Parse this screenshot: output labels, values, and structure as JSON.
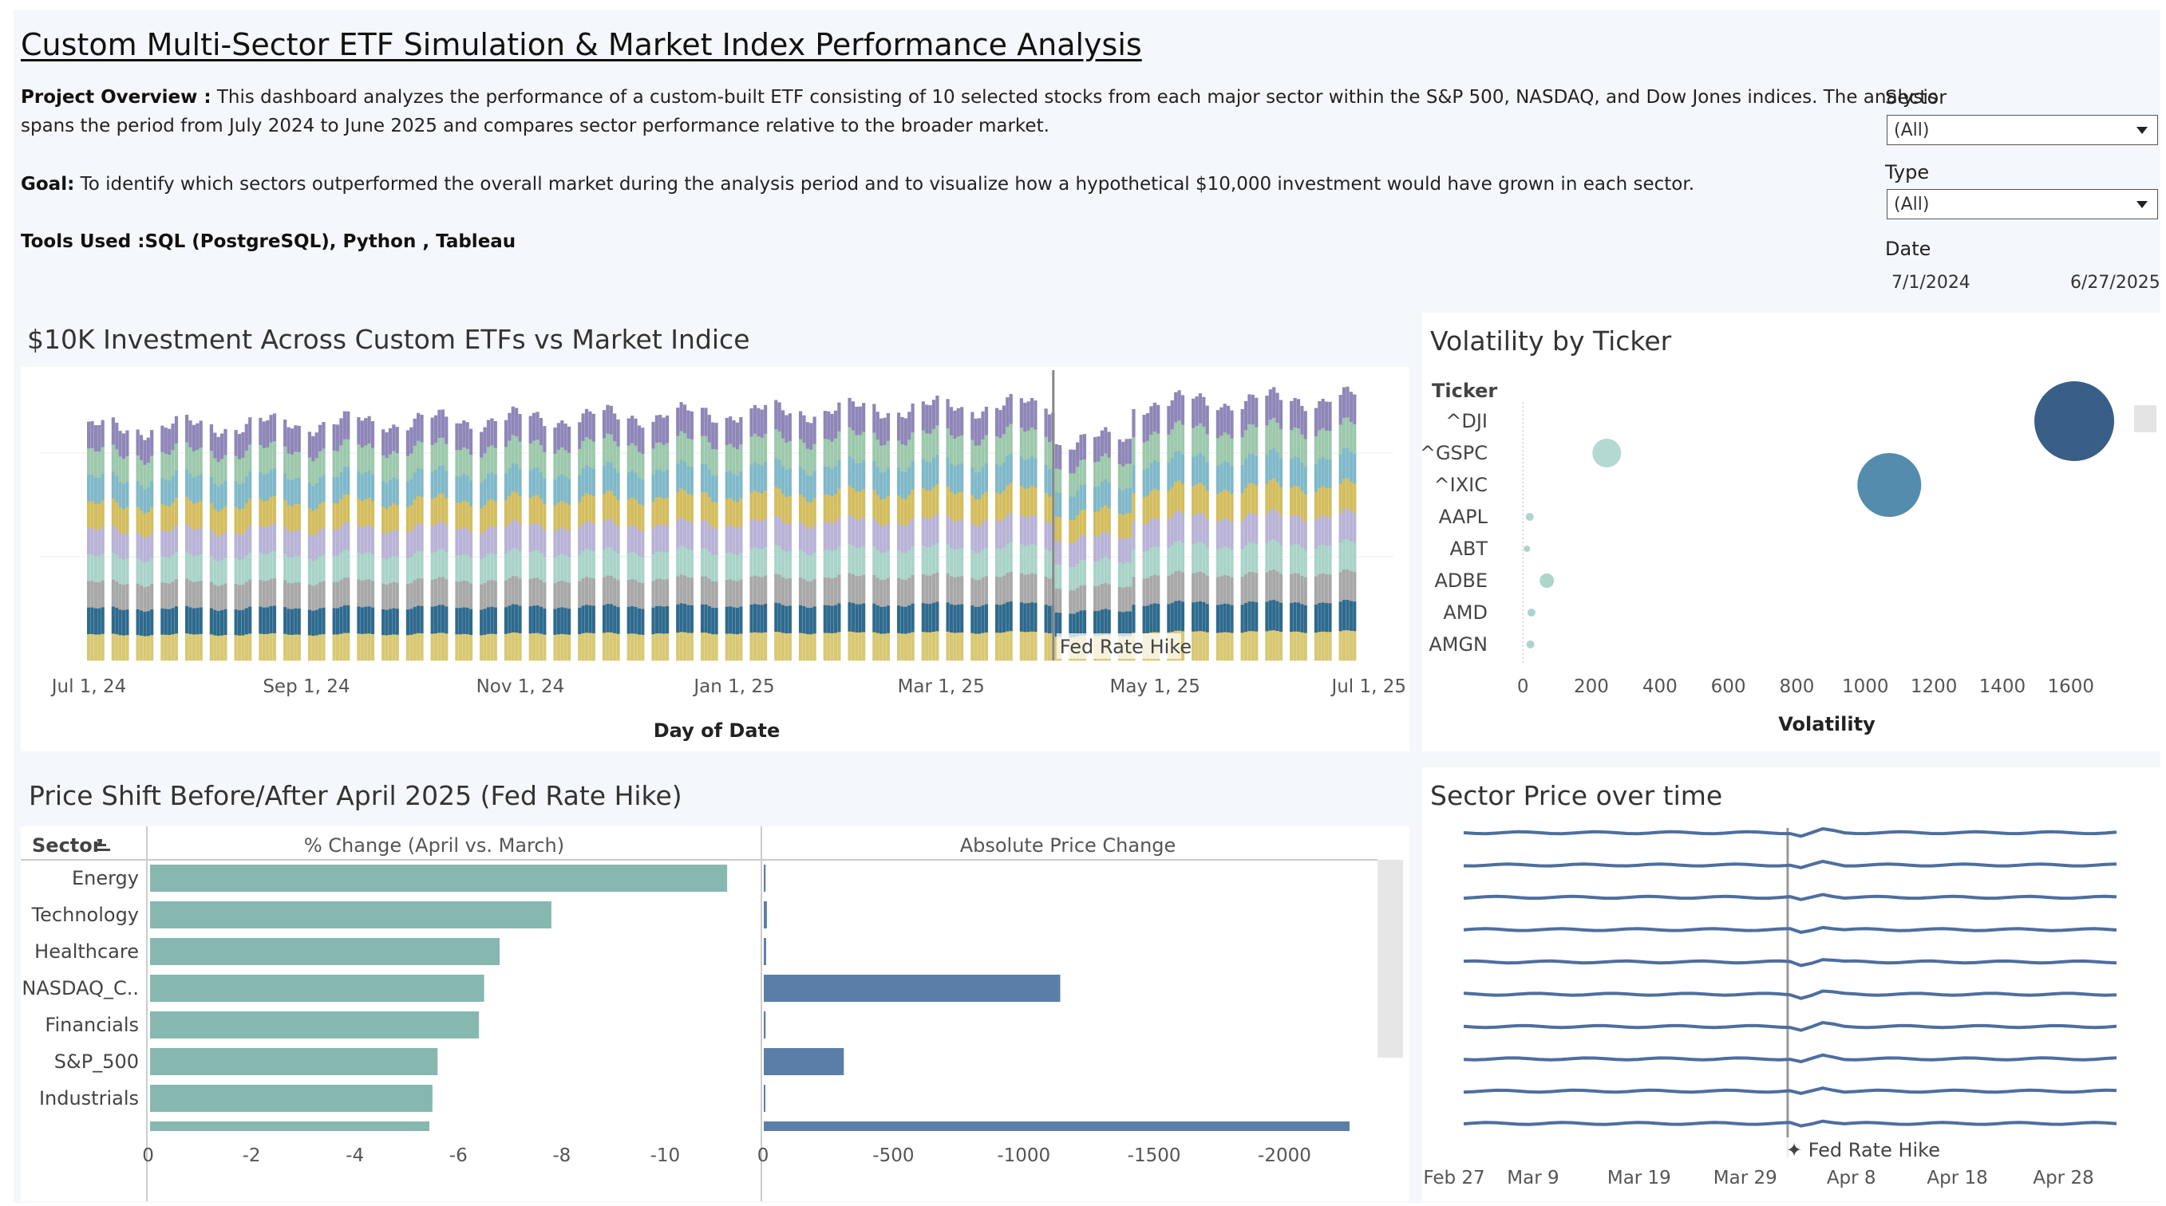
{
  "header": {
    "title": "Custom Multi-Sector ETF Simulation & Market Index Performance Analysis",
    "overview_label": "Project Overview :",
    "overview_line1": "This dashboard analyzes the performance of a custom-built ETF consisting of 10 selected stocks from each major sector within the S&P 500, NASDAQ, and Dow Jones indices. The analysis",
    "overview_line2": "spans the period from July 2024 to June 2025 and compares sector performance relative to the broader market.",
    "goal_label": "Goal:",
    "goal_text": "To identify which sectors outperformed the overall market during the analysis period and to visualize how a hypothetical $10,000 investment would have grown in each sector.",
    "tools_label": "Tools Used :",
    "tools_text": "SQL (PostgreSQL), Python , Tableau"
  },
  "filters": {
    "sector_label": "Sector",
    "sector_value": "(All)",
    "type_label": "Type",
    "type_value": "(All)",
    "date_label": "Date",
    "date_start": "7/1/2024",
    "date_end": "6/27/2025"
  },
  "colors": {
    "teal": "#86b8b0",
    "steel_blue": "#5b7ea8",
    "dark_blue": "#2e5581",
    "mid_blue": "#4a86a8",
    "light_teal": "#b0d6d0",
    "line_blue": "#4e6e9e",
    "stack": [
      "#d8c873",
      "#2e6a8e",
      "#a8a8a8",
      "#a9d3c8",
      "#b8b3d6",
      "#d3bd5e",
      "#7fb8c9",
      "#9cc8ab",
      "#8f86b8"
    ]
  },
  "chart_data": [
    {
      "type": "bar",
      "title": "$10K Investment Across Custom ETFs vs Market Indice",
      "xlabel": "Day of Date",
      "ylabel": "",
      "x_ticks": [
        "Jul 1, 24",
        "Sep 1, 24",
        "Nov 1, 24",
        "Jan 1, 25",
        "Mar 1, 25",
        "May 1, 25",
        "Jul 1, 25"
      ],
      "x_range": [
        "2024-06-17",
        "2025-07-08"
      ],
      "stacked": true,
      "segments": 9,
      "reference_line": {
        "date": "2025-04-02",
        "label": "Fed Rate Hike"
      }
    },
    {
      "type": "scatter",
      "title": "Volatility by Ticker",
      "y_header": "Ticker",
      "xlabel": "Volatility",
      "x_ticks": [
        0,
        200,
        400,
        600,
        800,
        1000,
        1200,
        1400,
        1600
      ],
      "xlim": [
        -5,
        1780
      ],
      "categories": [
        "^DJI",
        "^GSPC",
        "^IXIC",
        "AAPL",
        "ABT",
        "ADBE",
        "AMD",
        "AMGN"
      ],
      "values": [
        1610,
        245,
        1070,
        20,
        12,
        70,
        25,
        22
      ],
      "sizes": [
        50,
        18,
        40,
        5,
        4,
        9,
        5,
        5
      ]
    },
    {
      "type": "bar",
      "title": "Price Shift Before/After April 2025 (Fed Rate Hike)",
      "row_header": "Sector",
      "categories": [
        "Energy",
        "Technology",
        "Healthcare",
        "NASDAQ_C..",
        "Financials",
        "S&P_500",
        "Industrials"
      ],
      "series": [
        {
          "name": "% Change  (April vs. March)",
          "values": [
            -11.2,
            -7.8,
            -6.8,
            -6.5,
            -6.4,
            -5.6,
            -5.5
          ],
          "ticks": [
            0,
            -2,
            -4,
            -6,
            -8,
            -10
          ],
          "xlim": [
            -0.1,
            -11.8
          ]
        },
        {
          "name": "Absolute Price Change",
          "values": [
            -10,
            -15,
            -12,
            -1140,
            -10,
            -310,
            -5
          ],
          "ticks": [
            0,
            -500,
            -1000,
            -1500,
            -2000
          ],
          "xlim": [
            -3,
            -2320
          ]
        }
      ]
    },
    {
      "type": "line",
      "title": "Sector Price over time",
      "x_ticks": [
        "Feb 27",
        "Mar 9",
        "Mar 19",
        "Mar 29",
        "Apr 8",
        "Apr 18",
        "Apr 28"
      ],
      "x_range": [
        "2025-02-27",
        "2025-05-03"
      ],
      "series_count": 10,
      "reference_line": {
        "date": "2025-04-02",
        "label": "✦ Fed Rate Hike"
      }
    }
  ]
}
